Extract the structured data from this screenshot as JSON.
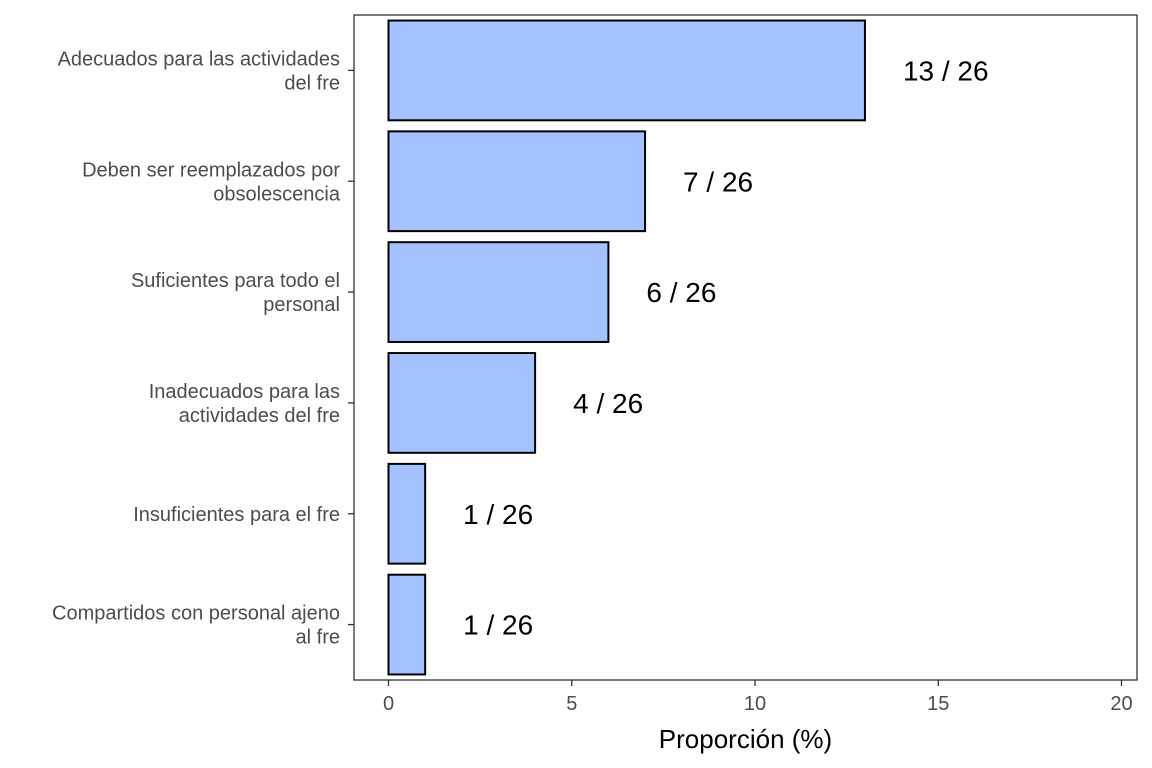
{
  "chart_data": {
    "type": "bar",
    "orientation": "horizontal",
    "categories": [
      [
        "Adecuados para las actividades",
        "del fre"
      ],
      [
        "Deben ser reemplazados por",
        "obsolescencia"
      ],
      [
        "Suficientes para todo el",
        "personal"
      ],
      [
        "Inadecuados para las",
        "actividades del fre"
      ],
      [
        "Insuficientes para el fre"
      ],
      [
        "Compartidos con personal ajeno",
        "al fre"
      ]
    ],
    "values": [
      13,
      7,
      6,
      4,
      1,
      1
    ],
    "data_labels": [
      "13 / 26",
      "7 / 26",
      "6 / 26",
      "4 / 26",
      "1 / 26",
      "1 / 26"
    ],
    "xlabel": "Proporción (%)",
    "ylabel": "",
    "xlim": [
      0,
      20
    ],
    "xticks": [
      0,
      5,
      10,
      15,
      20
    ],
    "grid": false,
    "colors": {
      "bar_fill": "#a4c2ff",
      "bar_stroke": "#000000",
      "panel_border": "#333333"
    }
  }
}
